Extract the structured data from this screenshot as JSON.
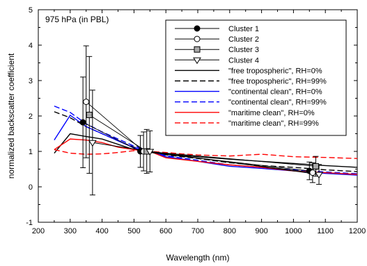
{
  "chart_data": {
    "type": "line",
    "annotation": "975 hPa (in PBL)",
    "xlabel": "Wavelength (nm)",
    "ylabel": "normalized backscatter coefficient",
    "xlim": [
      200,
      1200
    ],
    "ylim": [
      -1,
      5
    ],
    "xticks": [
      "200",
      "300",
      "400",
      "500",
      "600",
      "700",
      "800",
      "900",
      "1000",
      "1100",
      "1200"
    ],
    "yticks": [
      "-1",
      "0",
      "1",
      "2",
      "3",
      "4",
      "5"
    ],
    "grid": false,
    "legend_position": "top-right",
    "clusters": [
      {
        "name": "Cluster 1",
        "marker": "filled-circle",
        "points": [
          {
            "x": 340,
            "y": 1.82,
            "err": 1.28
          },
          {
            "x": 520,
            "y": 1.0,
            "err": 0.45
          },
          {
            "x": 1050,
            "y": 0.45,
            "err": 0.25
          }
        ]
      },
      {
        "name": "Cluster 2",
        "marker": "open-circle",
        "points": [
          {
            "x": 350,
            "y": 2.4,
            "err": 1.58
          },
          {
            "x": 530,
            "y": 1.0,
            "err": 0.55
          },
          {
            "x": 1060,
            "y": 0.4,
            "err": 0.28
          }
        ]
      },
      {
        "name": "Cluster 3",
        "marker": "square",
        "points": [
          {
            "x": 360,
            "y": 2.03,
            "err": 1.65
          },
          {
            "x": 540,
            "y": 1.0,
            "err": 0.62
          },
          {
            "x": 1070,
            "y": 0.58,
            "err": 0.28
          }
        ]
      },
      {
        "name": "Cluster 4",
        "marker": "open-triangle",
        "points": [
          {
            "x": 370,
            "y": 1.25,
            "err": 1.48
          },
          {
            "x": 550,
            "y": 1.0,
            "err": 0.58
          },
          {
            "x": 1080,
            "y": 0.35,
            "err": 0.28
          }
        ]
      }
    ],
    "models": [
      {
        "name": "\"free tropospheric\", RH=0%",
        "color": "#000000",
        "dash": "solid",
        "x": [
          250,
          300,
          350,
          400,
          450,
          500,
          550,
          600,
          700,
          800,
          900,
          1000,
          1100,
          1200
        ],
        "y": [
          0.95,
          1.5,
          1.42,
          1.35,
          1.2,
          1.05,
          1.0,
          0.93,
          0.85,
          0.78,
          0.72,
          0.66,
          0.6,
          0.55
        ]
      },
      {
        "name": "\"free tropospheric\", RH=99%",
        "color": "#000000",
        "dash": "dashed",
        "x": [
          250,
          300,
          350,
          400,
          450,
          500,
          550,
          600,
          700,
          800,
          900,
          1000,
          1100,
          1200
        ],
        "y": [
          2.12,
          1.95,
          1.7,
          1.5,
          1.3,
          1.12,
          1.0,
          0.9,
          0.8,
          0.68,
          0.6,
          0.55,
          0.48,
          0.43
        ]
      },
      {
        "name": "\"continental clean\", RH=0%",
        "color": "#0000ff",
        "dash": "solid",
        "x": [
          250,
          300,
          350,
          400,
          450,
          500,
          550,
          600,
          700,
          800,
          900,
          1000,
          1100,
          1200
        ],
        "y": [
          1.32,
          2.02,
          1.7,
          1.5,
          1.3,
          1.1,
          1.0,
          0.85,
          0.72,
          0.58,
          0.52,
          0.45,
          0.38,
          0.33
        ]
      },
      {
        "name": "\"continental clean\", RH=99%",
        "color": "#0000ff",
        "dash": "dashed",
        "x": [
          250,
          300,
          350,
          400,
          450,
          500,
          550,
          600,
          700,
          800,
          900,
          1000,
          1100,
          1200
        ],
        "y": [
          2.28,
          2.1,
          1.78,
          1.55,
          1.35,
          1.15,
          1.0,
          0.88,
          0.75,
          0.62,
          0.55,
          0.48,
          0.42,
          0.37
        ]
      },
      {
        "name": "\"maritime clean\", RH=0%",
        "color": "#ff0000",
        "dash": "solid",
        "x": [
          250,
          300,
          350,
          400,
          450,
          500,
          550,
          600,
          700,
          800,
          900,
          1000,
          1100,
          1200
        ],
        "y": [
          1.05,
          1.35,
          1.32,
          1.25,
          1.12,
          1.05,
          1.0,
          0.82,
          0.72,
          0.62,
          0.55,
          0.45,
          0.4,
          0.35
        ]
      },
      {
        "name": "\"maritime clean\", RH=99%",
        "color": "#ff0000",
        "dash": "dashed",
        "x": [
          250,
          300,
          350,
          400,
          450,
          500,
          550,
          600,
          650,
          700,
          800,
          900,
          1000,
          1100,
          1200
        ],
        "y": [
          1.05,
          0.95,
          0.92,
          0.93,
          0.97,
          1.02,
          1.0,
          0.97,
          0.93,
          0.9,
          0.87,
          0.92,
          0.85,
          0.83,
          0.8
        ]
      }
    ],
    "cluster_edges": [
      {
        "from": 0,
        "to": 1
      },
      {
        "from": 1,
        "to": 2
      }
    ]
  }
}
